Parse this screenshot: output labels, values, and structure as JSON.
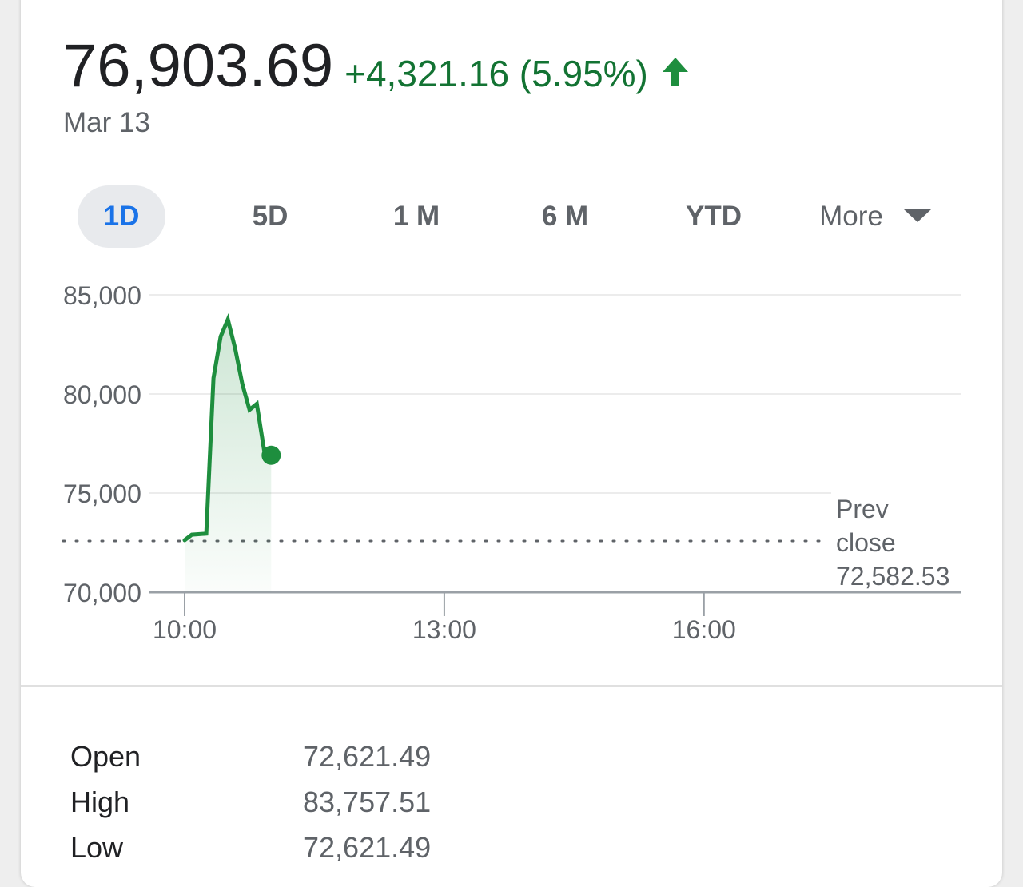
{
  "quote": {
    "price": "76,903.69",
    "change": "+4,321.16 (5.95%)",
    "date": "Mar 13",
    "change_color": "#137333",
    "direction_icon": "arrow-up-icon"
  },
  "tabs": [
    {
      "label": "1D",
      "active": true
    },
    {
      "label": "5D",
      "active": false
    },
    {
      "label": "1 M",
      "active": false
    },
    {
      "label": "6 M",
      "active": false
    },
    {
      "label": "YTD",
      "active": false
    }
  ],
  "more_label": "More",
  "chart_data": {
    "type": "line",
    "x": [
      "10:00",
      "10:05",
      "10:15",
      "10:20",
      "10:25",
      "10:30",
      "10:35",
      "10:40",
      "10:45",
      "10:50",
      "10:55",
      "11:00"
    ],
    "y": [
      72621.49,
      72900,
      72950,
      80800,
      82900,
      83757.51,
      82300,
      80500,
      79200,
      79500,
      77200,
      76903.69
    ],
    "xticks": [
      "10:00",
      "13:00",
      "16:00"
    ],
    "yticks": [
      "70,000",
      "75,000",
      "80,000",
      "85,000"
    ],
    "ylim": [
      70000,
      85000
    ],
    "xlim": [
      "10:00",
      "18:00"
    ],
    "prev_close_value": 72582.53,
    "prev_close_label": [
      "Prev",
      "close",
      "72,582.53"
    ],
    "grid": true,
    "line_color": "#1e8e3e"
  },
  "stats": [
    {
      "label": "Open",
      "value": "72,621.49"
    },
    {
      "label": "High",
      "value": "83,757.51"
    },
    {
      "label": "Low",
      "value": "72,621.49"
    }
  ]
}
